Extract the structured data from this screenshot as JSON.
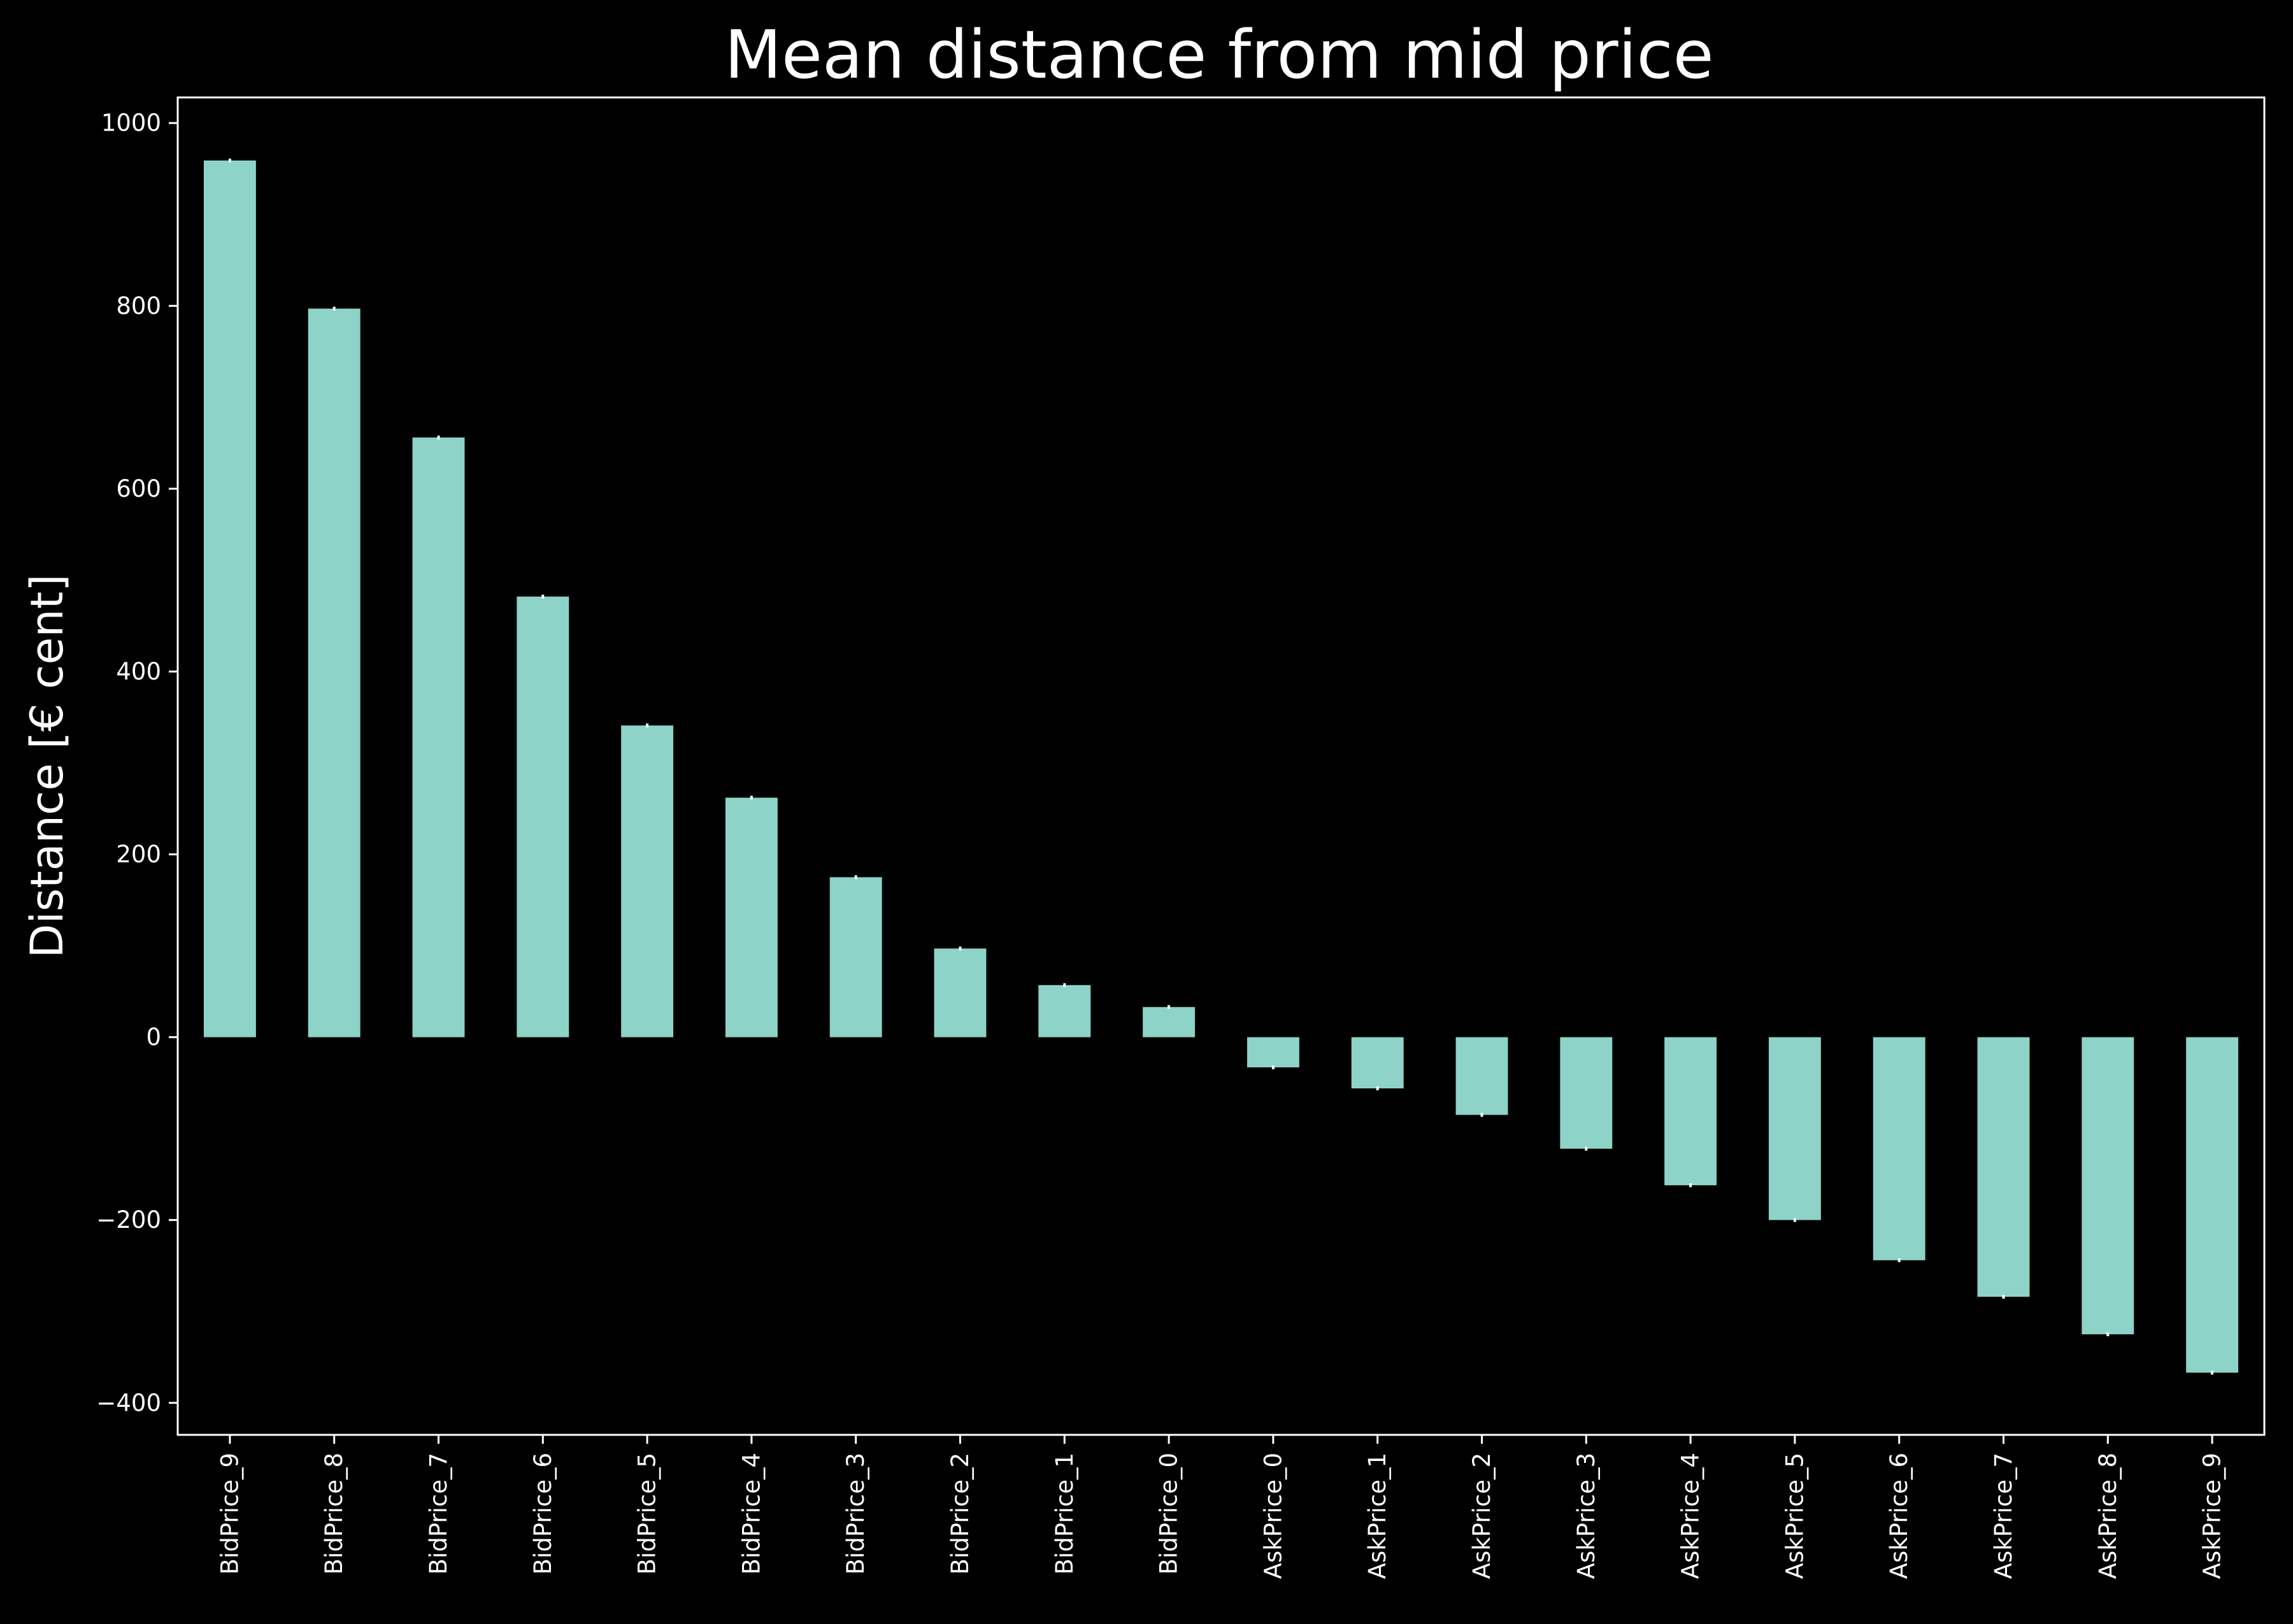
{
  "chart_data": {
    "type": "bar",
    "title": "Mean distance from mid price",
    "xlabel": "",
    "ylabel": "Distance [€ cent]",
    "categories": [
      "BidPrice_9",
      "BidPrice_8",
      "BidPrice_7",
      "BidPrice_6",
      "BidPrice_5",
      "BidPrice_4",
      "BidPrice_3",
      "BidPrice_2",
      "BidPrice_1",
      "BidPrice_0",
      "AskPrice_0",
      "AskPrice_1",
      "AskPrice_2",
      "AskPrice_3",
      "AskPrice_4",
      "AskPrice_5",
      "AskPrice_6",
      "AskPrice_7",
      "AskPrice_8",
      "AskPrice_9"
    ],
    "values": [
      959,
      797,
      656,
      482,
      341,
      262,
      175,
      97,
      57,
      33,
      -33,
      -56,
      -85,
      -122,
      -162,
      -200,
      -244,
      -284,
      -325,
      -367
    ],
    "ylim": [
      -435,
      1028
    ],
    "yticks": [
      1000,
      800,
      600,
      400,
      200,
      0,
      -200,
      -400
    ],
    "ytick_labels": [
      "1000",
      "800",
      "600",
      "400",
      "200",
      "0",
      "−200",
      "−400"
    ],
    "error_bars": true,
    "grid": false,
    "legend": "none",
    "colors": {
      "background": "#000000",
      "bar": "#8dd3c7",
      "text": "#ffffff",
      "axis": "#ffffff",
      "error_bar": "#ffffff"
    }
  }
}
